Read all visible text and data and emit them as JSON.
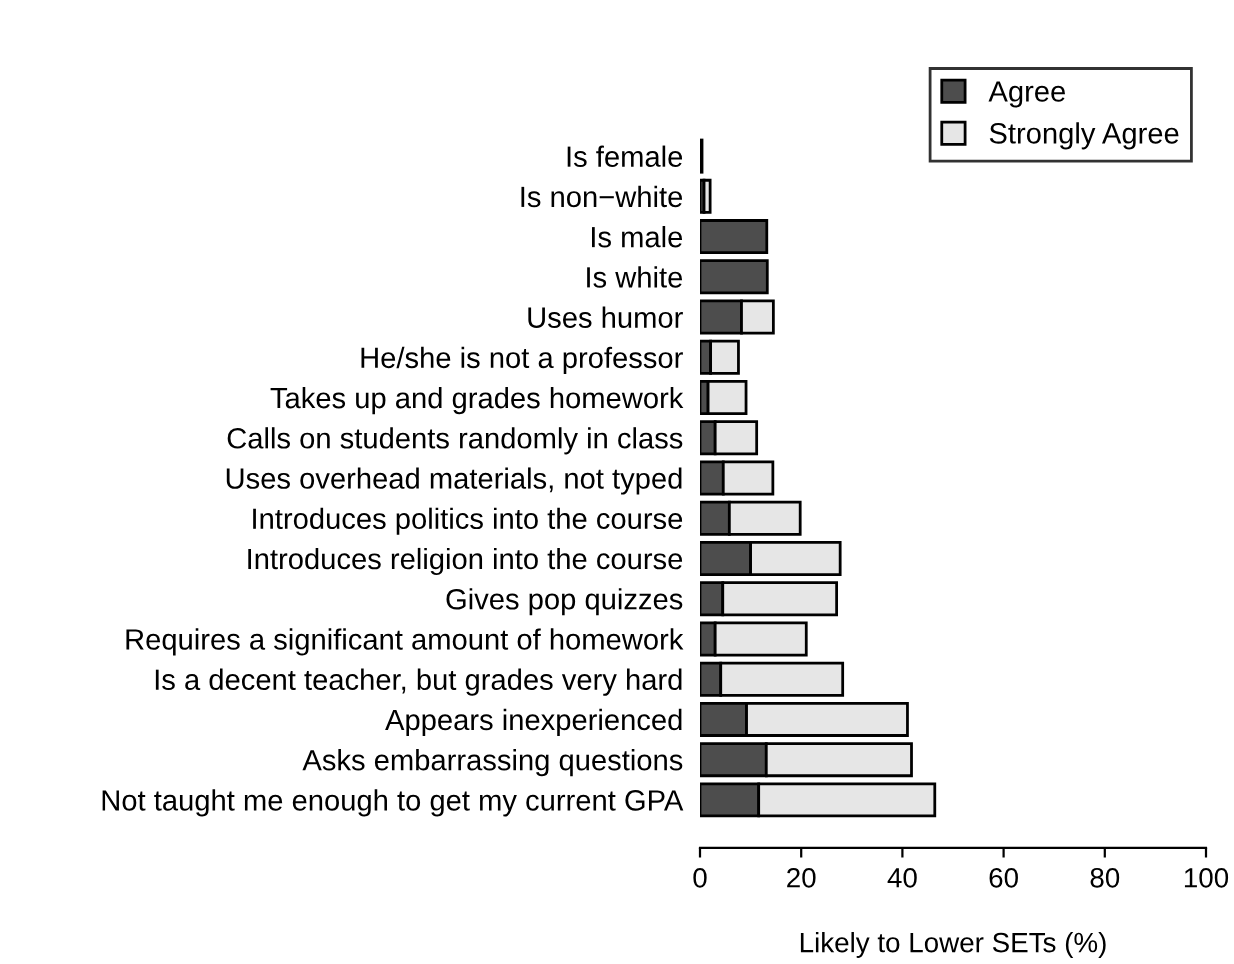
{
  "chart_data": {
    "type": "bar",
    "orientation": "horizontal",
    "stacked": true,
    "categories": [
      "Is female",
      "Is non−white",
      "Is male",
      "Is white",
      "Uses humor",
      "He/she is not a professor",
      "Takes up and grades homework",
      "Calls on students randomly in class",
      "Uses overhead materials, not typed",
      "Introduces politics into the course",
      "Introduces religion into the course",
      "Gives pop quizzes",
      "Requires a significant amount of homework",
      "Is a decent teacher, but grades very hard",
      "Appears inexperienced",
      "Asks embarrassing questions",
      "Not taught me enough to get my current GPA"
    ],
    "series": [
      {
        "name": "Agree",
        "color": "#4d4d4d",
        "values": [
          0.4,
          0.8,
          13.2,
          13.3,
          8.2,
          2.1,
          1.6,
          3.0,
          4.6,
          5.8,
          10.0,
          4.5,
          3.0,
          4.1,
          9.2,
          13.1,
          11.6
        ]
      },
      {
        "name": "Strongly Agree",
        "color": "#e6e6e6",
        "values": [
          null,
          1.2,
          null,
          null,
          6.3,
          5.5,
          7.5,
          8.2,
          9.8,
          14.0,
          17.7,
          22.5,
          18.0,
          24.1,
          31.8,
          28.7,
          34.8
        ]
      }
    ],
    "xlim": [
      0,
      100
    ],
    "xticks": [
      0,
      20,
      40,
      60,
      80,
      100
    ],
    "xlabel": "Likely to Lower SETs (%)",
    "legend": "top right",
    "grid": false
  }
}
